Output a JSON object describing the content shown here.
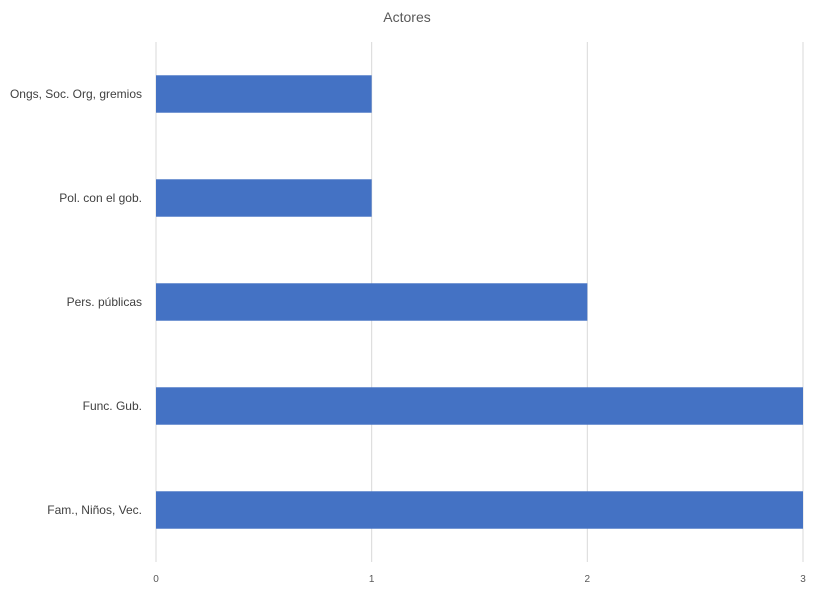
{
  "chart_data": {
    "type": "bar",
    "orientation": "horizontal",
    "title": "Actores",
    "categories": [
      "Ongs, Soc. Org, gremios",
      "Pol. con el gob.",
      "Pers. públicas",
      "Func. Gub.",
      "Fam., Niños, Vec."
    ],
    "values": [
      1,
      1,
      2,
      3,
      3
    ],
    "xlim": [
      0,
      3
    ],
    "xticks": [
      "0",
      "1",
      "2",
      "3"
    ],
    "xlabel": "",
    "ylabel": "",
    "grid": "vertical",
    "legend": "none",
    "bar_color": "#4472c4"
  }
}
